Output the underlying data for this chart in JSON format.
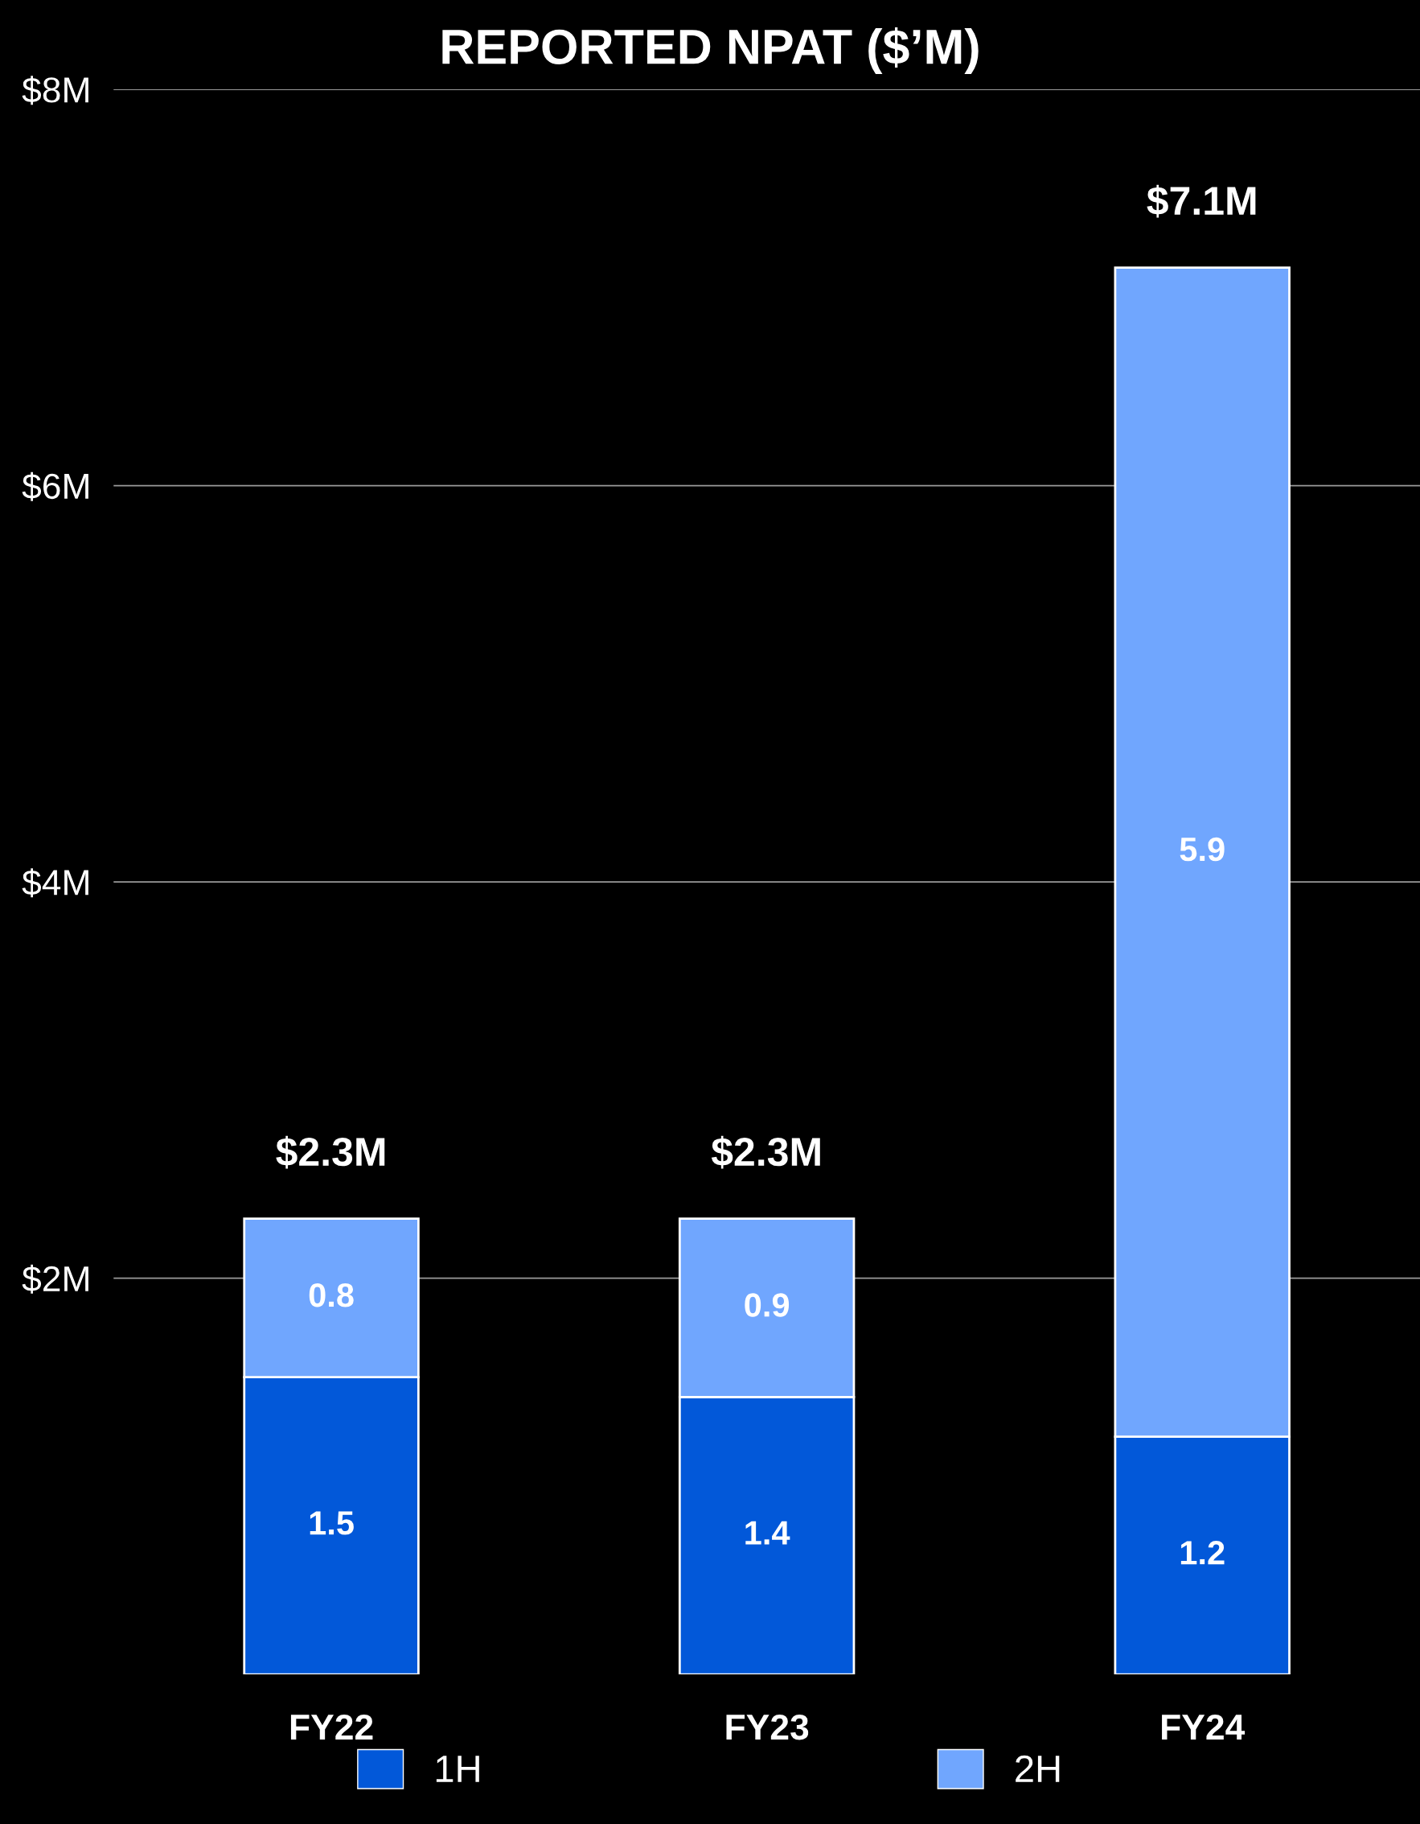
{
  "chart_data": {
    "type": "bar",
    "title": "REPORTED NPAT ($’M)",
    "categories": [
      "FY22",
      "FY23",
      "FY24"
    ],
    "series": [
      {
        "name": "1H",
        "color": "#0258d9",
        "values": [
          1.5,
          1.4,
          1.2
        ]
      },
      {
        "name": "2H",
        "color": "#70a6fe",
        "values": [
          0.8,
          0.9,
          5.9
        ]
      }
    ],
    "stacked": true,
    "data_labels": true,
    "totals": [
      "$2.3M",
      "$2.3M",
      "$7.1M"
    ],
    "ylim": [
      0,
      8
    ],
    "yticks": [
      {
        "value": 2,
        "label": "$2M"
      },
      {
        "value": 4,
        "label": "$4M"
      },
      {
        "value": 6,
        "label": "$6M"
      },
      {
        "value": 8,
        "label": "$8M"
      }
    ],
    "grid": "y",
    "legend": "bottom"
  }
}
